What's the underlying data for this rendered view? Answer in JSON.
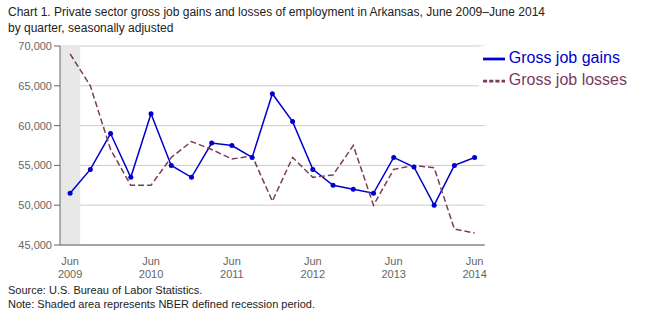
{
  "chart_data": {
    "type": "line",
    "title": "Chart 1. Private sector gross job gains and losses of employment in Arkansas, June 2009–June 2014",
    "subtitle": "by quarter, seasonally adjusted",
    "annotations": [
      "Source: U.S. Bureau of Labor Statistics.",
      "Note: Shaded area represents NBER defined recession period."
    ],
    "categories": [
      "Jun\n2009",
      null,
      null,
      null,
      "Jun\n2010",
      null,
      null,
      null,
      "Jun\n2011",
      null,
      null,
      null,
      "Jun\n2012",
      null,
      null,
      null,
      "Jun\n2013",
      null,
      null,
      null,
      "Jun\n2014"
    ],
    "series": [
      {
        "name": "Gross job gains",
        "color": "#0000CC",
        "marker": "circle",
        "line_style": "solid",
        "values": [
          51500,
          54500,
          59000,
          53500,
          61500,
          55000,
          53500,
          57800,
          57500,
          56000,
          64000,
          60500,
          54500,
          52500,
          52000,
          51500,
          56000,
          54800,
          50000,
          55000,
          56000
        ]
      },
      {
        "name": "Gross job losses",
        "color": "#7B3B5E",
        "marker": "none",
        "line_style": "dashed",
        "values": [
          69000,
          65000,
          57000,
          52500,
          52500,
          56000,
          58000,
          57000,
          55800,
          56200,
          50500,
          56000,
          53500,
          53800,
          57500,
          50000,
          54500,
          55000,
          54700,
          47000,
          46500
        ]
      }
    ],
    "ylim": [
      45000,
      70000
    ],
    "yticks": [
      {
        "value": 45000,
        "label": "45,000"
      },
      {
        "value": 50000,
        "label": "50,000"
      },
      {
        "value": 55000,
        "label": "55,000"
      },
      {
        "value": 60000,
        "label": "60,000"
      },
      {
        "value": 65000,
        "label": "65,000"
      },
      {
        "value": 70000,
        "label": "70,000"
      }
    ],
    "grid": true,
    "legend": "upper right",
    "shaded": {
      "positions": [
        0
      ],
      "color": "#E8E8E8"
    }
  }
}
